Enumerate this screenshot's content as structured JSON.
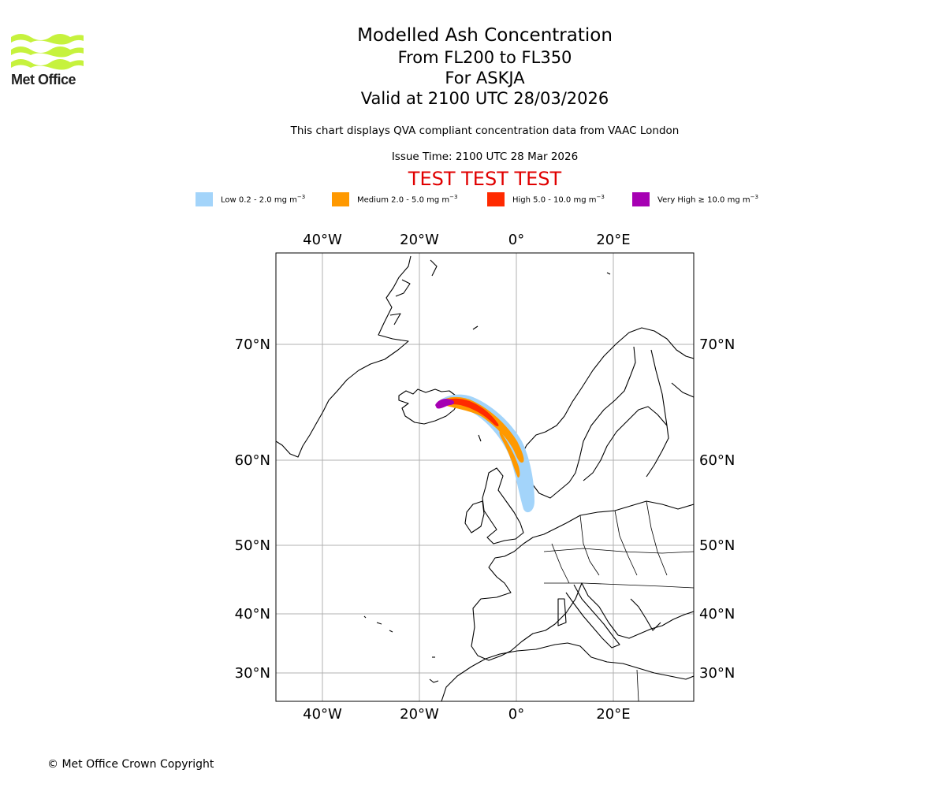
{
  "logo": {
    "text": "Met Office",
    "color": "#c6f23d"
  },
  "header": {
    "title": "Modelled Ash Concentration",
    "levels": "From FL200 to FL350",
    "volcano": "For ASKJA",
    "valid": "Valid at 2100 UTC 28/03/2026",
    "compliance": "This chart displays QVA compliant concentration data from VAAC London",
    "issue_time": "Issue Time: 2100 UTC 28 Mar 2026",
    "test_banner": "TEST TEST TEST"
  },
  "legend": [
    {
      "label": "Low 0.2 - 2.0 mg m",
      "color": "#a3d4fa"
    },
    {
      "label": "Medium 2.0 - 5.0 mg m",
      "color": "#ff9900"
    },
    {
      "label": "High 5.0 - 10.0 mg m",
      "color": "#ff2a00"
    },
    {
      "label": "Very High ≥ 10.0 mg m",
      "color": "#a600b3"
    }
  ],
  "legend_unit_exponent": "−3",
  "axes": {
    "lon_ticks": [
      "40°W",
      "20°W",
      "0°",
      "20°E"
    ],
    "lat_ticks": [
      "70°N",
      "60°N",
      "50°N",
      "40°N",
      "30°N"
    ]
  },
  "copyright": "© Met Office Crown Copyright"
}
